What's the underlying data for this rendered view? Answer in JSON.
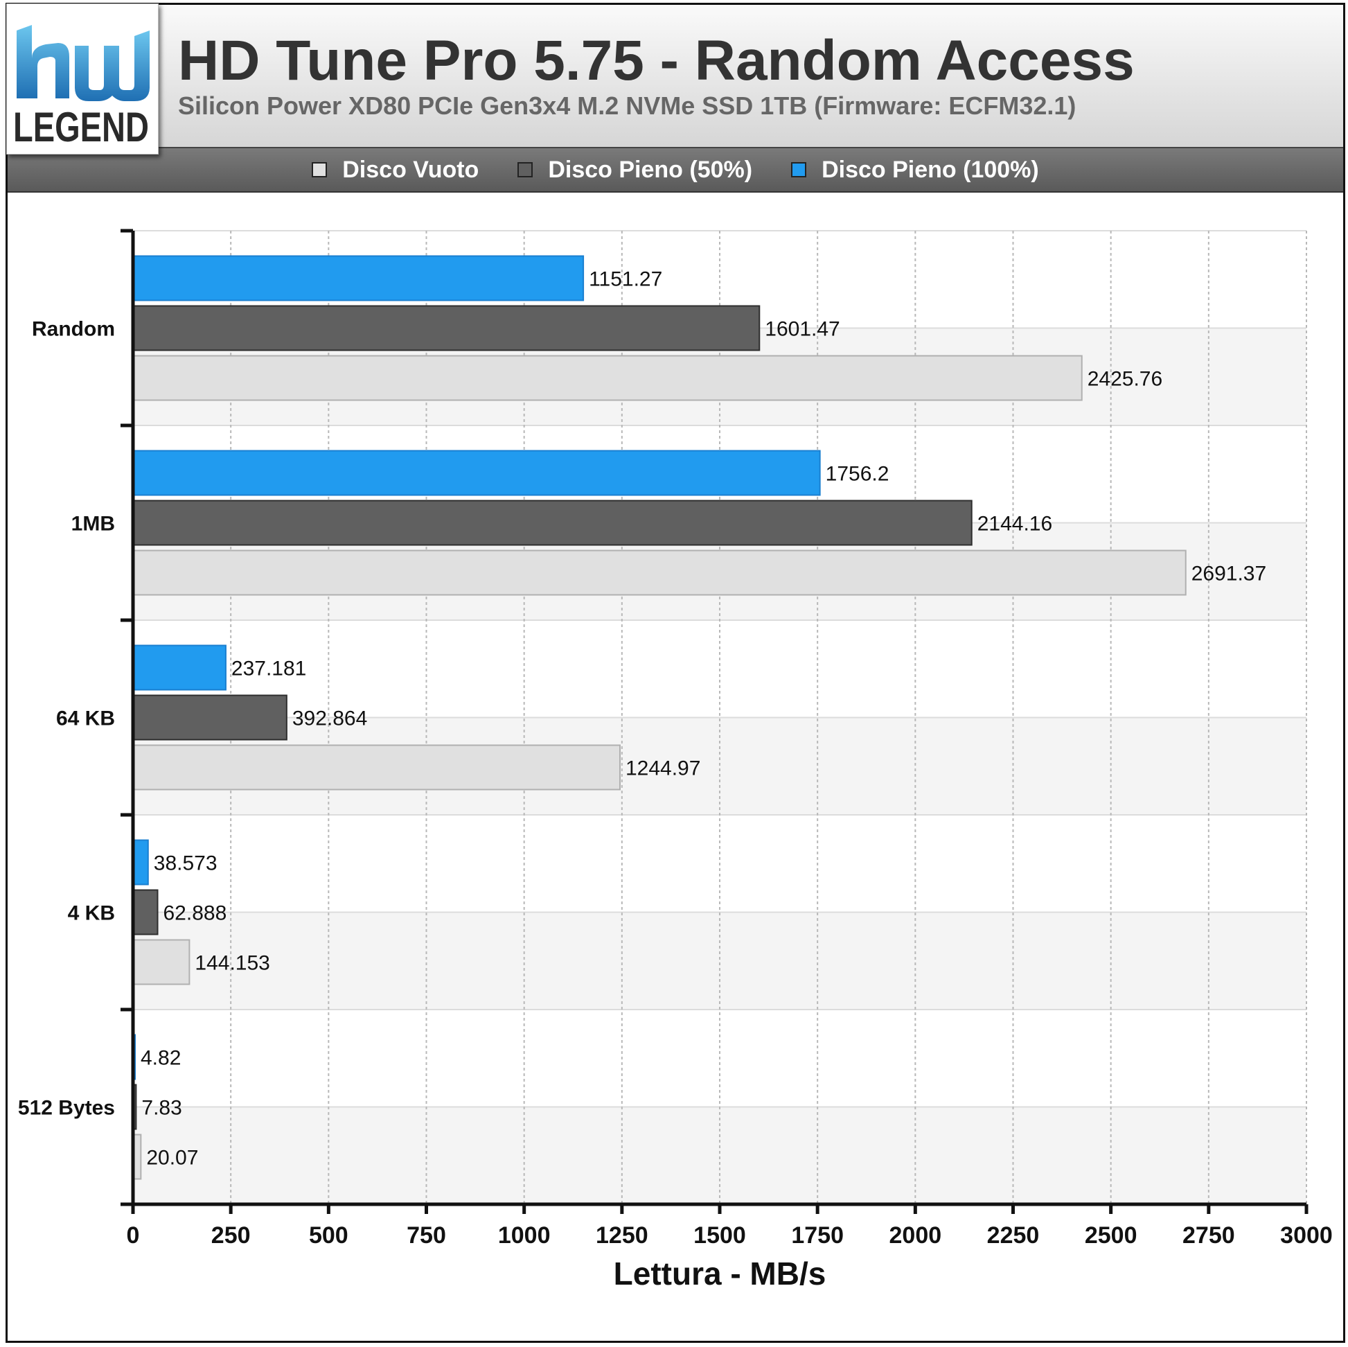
{
  "header": {
    "logo_text": "LEGEND",
    "title": "HD Tune Pro 5.75 - Random Access",
    "subtitle": "Silicon Power XD80 PCIe Gen3x4 M.2 NVMe SSD 1TB (Firmware: ECFM32.1)"
  },
  "legend": [
    {
      "label": "Disco Vuoto",
      "color": "#e0e0e0"
    },
    {
      "label": "Disco Pieno (50%)",
      "color": "#606060"
    },
    {
      "label": "Disco Pieno (100%)",
      "color": "#219bef"
    }
  ],
  "chart_data": {
    "type": "bar",
    "orientation": "horizontal",
    "xlabel": "Lettura - MB/s",
    "xlim": [
      0,
      3000
    ],
    "xticks": [
      "0",
      "250",
      "500",
      "750",
      "1000",
      "1250",
      "1500",
      "1750",
      "2000",
      "2250",
      "2500",
      "2750",
      "3000"
    ],
    "categories": [
      "Random",
      "1MB",
      "64 KB",
      "4 KB",
      "512 Bytes"
    ],
    "series": [
      {
        "name": "Disco Pieno (100%)",
        "color": "#219bef",
        "values": [
          1151.27,
          1756.2,
          237.181,
          38.573,
          4.82
        ],
        "labels": [
          "1151.27",
          "1756.2",
          "237.181",
          "38.573",
          "4.82"
        ]
      },
      {
        "name": "Disco Pieno (50%)",
        "color": "#606060",
        "values": [
          1601.47,
          2144.16,
          392.864,
          62.888,
          7.83
        ],
        "labels": [
          "1601.47",
          "2144.16",
          "392.864",
          "62.888",
          "7.83"
        ]
      },
      {
        "name": "Disco Vuoto",
        "color": "#e0e0e0",
        "values": [
          2425.76,
          2691.37,
          1244.97,
          144.153,
          20.07
        ],
        "labels": [
          "2425.76",
          "2691.37",
          "1244.97",
          "144.153",
          "20.07"
        ]
      }
    ],
    "grid": true,
    "legend_position": "top"
  }
}
